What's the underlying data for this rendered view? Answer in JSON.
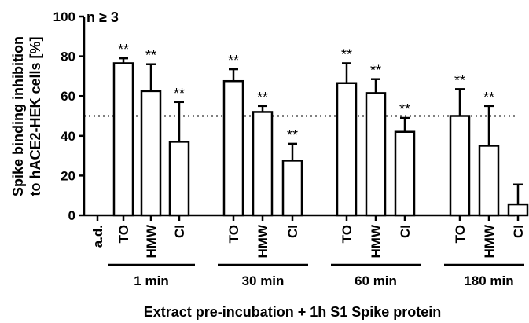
{
  "chart_data": {
    "type": "bar",
    "title": "",
    "annotation": "n ≥ 3",
    "ylabel_lines": [
      "Spike binding inhibition",
      "to hACE2-HEK cells [%]"
    ],
    "xlabel": "Extract pre-incubation + 1h S1 Spike protein",
    "ylim": [
      0,
      100
    ],
    "yticks": [
      0,
      20,
      40,
      60,
      80,
      100
    ],
    "reference_line": 50,
    "categories": [
      {
        "label": "a.d.",
        "group": "",
        "value": null,
        "error": null,
        "sig": ""
      },
      {
        "label": "TO",
        "group": "1 min",
        "value": 76.5,
        "error": 2.5,
        "sig": "**"
      },
      {
        "label": "HMW",
        "group": "1 min",
        "value": 62.5,
        "error": 13.5,
        "sig": "**"
      },
      {
        "label": "CI",
        "group": "1 min",
        "value": 37,
        "error": 20,
        "sig": "**"
      },
      {
        "label": "TO",
        "group": "30 min",
        "value": 67.5,
        "error": 6,
        "sig": "**"
      },
      {
        "label": "HMW",
        "group": "30 min",
        "value": 52,
        "error": 3,
        "sig": "**"
      },
      {
        "label": "CI",
        "group": "30 min",
        "value": 27.5,
        "error": 8.5,
        "sig": "**"
      },
      {
        "label": "TO",
        "group": "60 min",
        "value": 66.5,
        "error": 10,
        "sig": "**"
      },
      {
        "label": "HMW",
        "group": "60 min",
        "value": 61.5,
        "error": 7,
        "sig": "**"
      },
      {
        "label": "CI",
        "group": "60 min",
        "value": 42,
        "error": 7,
        "sig": "**"
      },
      {
        "label": "TO",
        "group": "180 min",
        "value": 50,
        "error": 13.5,
        "sig": "**"
      },
      {
        "label": "HMW",
        "group": "180 min",
        "value": 35,
        "error": 20,
        "sig": "**"
      },
      {
        "label": "CI",
        "group": "180 min",
        "value": 5.5,
        "error": 10,
        "sig": ""
      }
    ],
    "groups": [
      "1 min",
      "30 min",
      "60 min",
      "180 min"
    ],
    "grid": false,
    "legend": false
  }
}
